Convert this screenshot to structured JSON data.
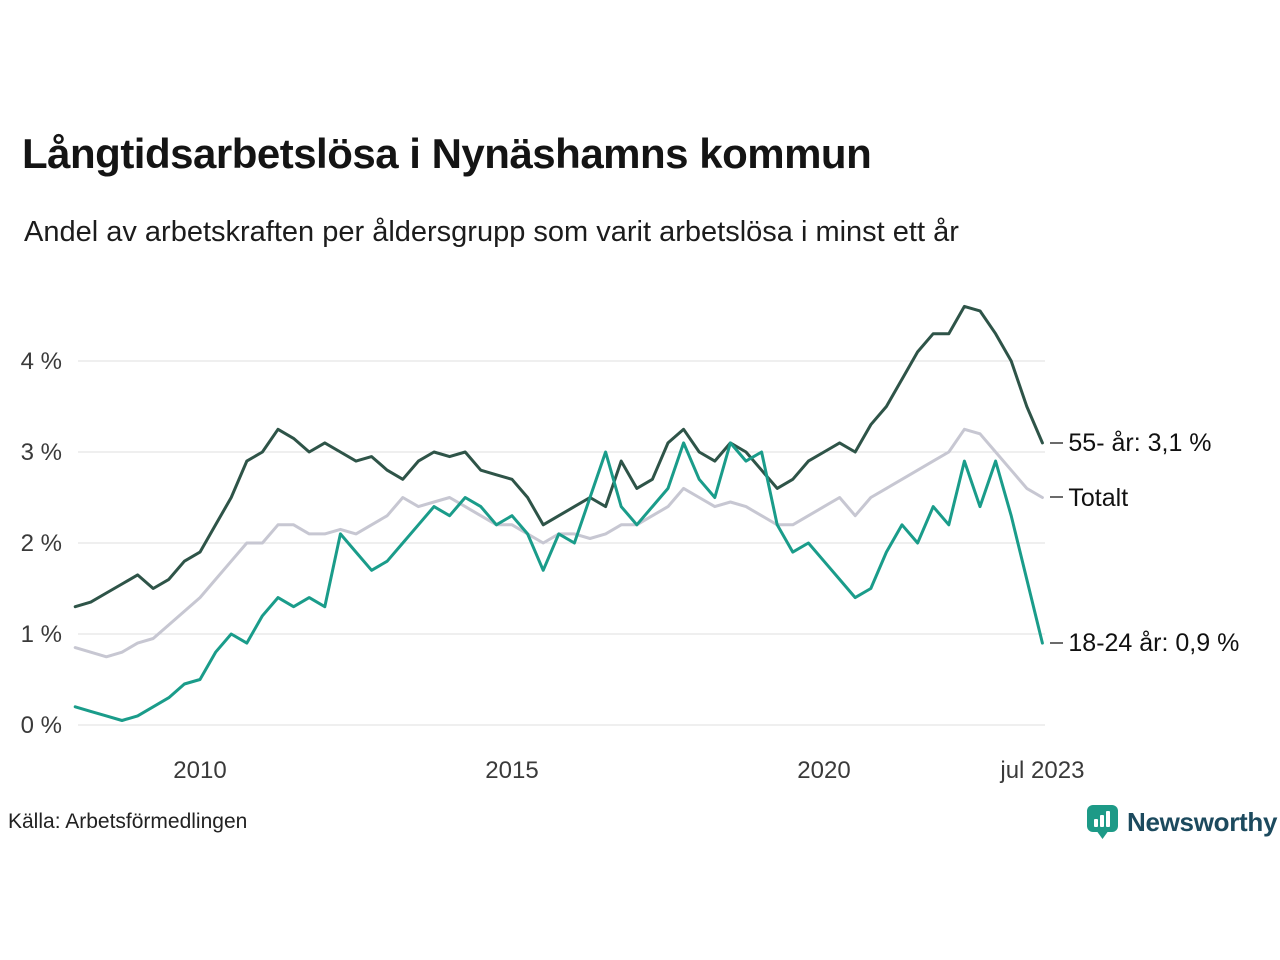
{
  "header": {
    "title": "Långtidsarbetslösa i Nynäshamns kommun",
    "subtitle": "Andel av arbetskraften per åldersgrupp som varit arbetslösa i minst ett år"
  },
  "footer": {
    "source": "Källa: Arbetsförmedlingen",
    "brand": "Newsworthy"
  },
  "colors": {
    "brand_teal": "#1d9a87",
    "brand_text": "#1c4a5e",
    "grid": "#dfdfdf"
  },
  "chart_data": {
    "type": "line",
    "title": "Långtidsarbetslösa i Nynäshamns kommun",
    "subtitle": "Andel av arbetskraften per åldersgrupp som varit arbetslösa i minst ett år",
    "x_start": 2008.0,
    "x_step": 0.25,
    "xlim": [
      2008.0,
      2023.58
    ],
    "ylim": [
      0,
      4.8
    ],
    "grid": true,
    "legend_position": "right-end-labels",
    "xticks": [
      {
        "value": 2010,
        "label": "2010"
      },
      {
        "value": 2015,
        "label": "2015"
      },
      {
        "value": 2020,
        "label": "2020"
      },
      {
        "value": 2023.5,
        "label": "jul 2023"
      }
    ],
    "yticks": [
      {
        "value": 0,
        "label": "0 %"
      },
      {
        "value": 1,
        "label": "1 %"
      },
      {
        "value": 2,
        "label": "2 %"
      },
      {
        "value": 3,
        "label": "3 %"
      },
      {
        "value": 4,
        "label": "4 %"
      }
    ],
    "series": [
      {
        "id": "totalt",
        "name": "Totalt",
        "end_label": "Totalt",
        "end_value": 2.5,
        "color": "#c7c7d2",
        "values": [
          0.85,
          0.8,
          0.75,
          0.8,
          0.9,
          0.95,
          1.1,
          1.25,
          1.4,
          1.6,
          1.8,
          2.0,
          2.0,
          2.2,
          2.2,
          2.1,
          2.1,
          2.15,
          2.1,
          2.2,
          2.3,
          2.5,
          2.4,
          2.45,
          2.5,
          2.4,
          2.3,
          2.2,
          2.2,
          2.1,
          2.0,
          2.1,
          2.1,
          2.05,
          2.1,
          2.2,
          2.2,
          2.3,
          2.4,
          2.6,
          2.5,
          2.4,
          2.45,
          2.4,
          2.3,
          2.2,
          2.2,
          2.3,
          2.4,
          2.5,
          2.3,
          2.5,
          2.6,
          2.7,
          2.8,
          2.9,
          3.0,
          3.25,
          3.2,
          3.0,
          2.8,
          2.6,
          2.5
        ]
      },
      {
        "id": "55-ar",
        "name": "55- år",
        "end_label": "55- år: 3,1 %",
        "end_value": 3.1,
        "color": "#2e5448",
        "values": [
          1.3,
          1.35,
          1.45,
          1.55,
          1.65,
          1.5,
          1.6,
          1.8,
          1.9,
          2.2,
          2.5,
          2.9,
          3.0,
          3.25,
          3.15,
          3.0,
          3.1,
          3.0,
          2.9,
          2.95,
          2.8,
          2.7,
          2.9,
          3.0,
          2.95,
          3.0,
          2.8,
          2.75,
          2.7,
          2.5,
          2.2,
          2.3,
          2.4,
          2.5,
          2.4,
          2.9,
          2.6,
          2.7,
          3.1,
          3.25,
          3.0,
          2.9,
          3.1,
          3.0,
          2.8,
          2.6,
          2.7,
          2.9,
          3.0,
          3.1,
          3.0,
          3.3,
          3.5,
          3.8,
          4.1,
          4.3,
          4.3,
          4.6,
          4.55,
          4.3,
          4.0,
          3.5,
          3.1
        ]
      },
      {
        "id": "18-24-ar",
        "name": "18-24 år",
        "end_label": "18-24 år: 0,9 %",
        "end_value": 0.9,
        "color": "#1a9c8a",
        "values": [
          0.2,
          0.15,
          0.1,
          0.05,
          0.1,
          0.2,
          0.3,
          0.45,
          0.5,
          0.8,
          1.0,
          0.9,
          1.2,
          1.4,
          1.3,
          1.4,
          1.3,
          2.1,
          1.9,
          1.7,
          1.8,
          2.0,
          2.2,
          2.4,
          2.3,
          2.5,
          2.4,
          2.2,
          2.3,
          2.1,
          1.7,
          2.1,
          2.0,
          2.5,
          3.0,
          2.4,
          2.2,
          2.4,
          2.6,
          3.1,
          2.7,
          2.5,
          3.1,
          2.9,
          3.0,
          2.2,
          1.9,
          2.0,
          1.8,
          1.6,
          1.4,
          1.5,
          1.9,
          2.2,
          2.0,
          2.4,
          2.2,
          2.9,
          2.4,
          2.9,
          2.3,
          1.6,
          0.9
        ]
      }
    ]
  }
}
